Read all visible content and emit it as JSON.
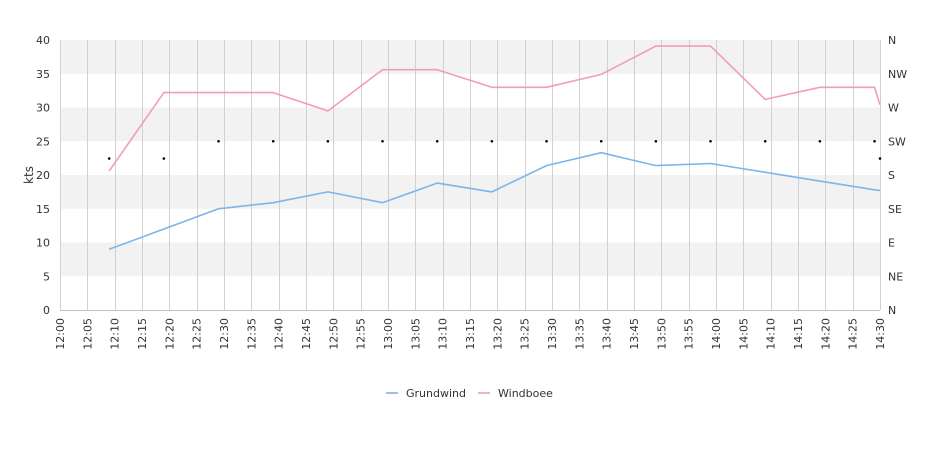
{
  "chart_data": {
    "type": "line",
    "ylabel": "kts",
    "ylim": [
      0,
      40
    ],
    "y_ticks": [
      "0",
      "5",
      "10",
      "15",
      "20",
      "25",
      "30",
      "35",
      "40"
    ],
    "right_ticks": [
      "N",
      "NE",
      "E",
      "SE",
      "S",
      "SW",
      "W",
      "NW",
      "N"
    ],
    "x_ticks": [
      "12:00",
      "12:05",
      "12:10",
      "12:15",
      "12:20",
      "12:25",
      "12:30",
      "12:35",
      "12:40",
      "12:45",
      "12:50",
      "12:55",
      "13:00",
      "13:05",
      "13:10",
      "13:15",
      "13:20",
      "13:25",
      "13:30",
      "13:35",
      "13:40",
      "13:45",
      "13:50",
      "13:55",
      "14:00",
      "14:05",
      "14:10",
      "14:15",
      "14:20",
      "14:25",
      "14:30"
    ],
    "grid": true,
    "legend_position": "bottom-center",
    "series": [
      {
        "name": "Grundwind",
        "color": "#7cb5ec",
        "x": [
          "12:09",
          "12:19",
          "12:29",
          "12:39",
          "12:49",
          "12:59",
          "13:09",
          "13:19",
          "13:29",
          "13:39",
          "13:49",
          "13:59",
          "14:09",
          "14:19",
          "14:29",
          "14:30"
        ],
        "values": [
          9.0,
          12.0,
          15.0,
          15.9,
          17.5,
          15.9,
          18.8,
          17.5,
          21.4,
          23.3,
          21.4,
          21.7,
          20.4,
          19.1,
          17.8,
          17.7
        ]
      },
      {
        "name": "Windboee",
        "color": "#f49ac1",
        "x": [
          "12:09",
          "12:19",
          "12:29",
          "12:39",
          "12:49",
          "12:59",
          "13:09",
          "13:19",
          "13:29",
          "13:39",
          "13:49",
          "13:59",
          "14:09",
          "14:19",
          "14:29",
          "14:30"
        ],
        "values": [
          20.6,
          32.2,
          32.2,
          32.2,
          29.5,
          35.6,
          35.6,
          33.0,
          33.0,
          34.9,
          39.1,
          39.1,
          31.2,
          33.0,
          33.0,
          30.4
        ]
      }
    ],
    "direction_series": {
      "x": [
        "12:09",
        "12:19",
        "12:29",
        "12:39",
        "12:49",
        "12:59",
        "13:09",
        "13:19",
        "13:29",
        "13:39",
        "13:49",
        "13:59",
        "14:09",
        "14:19",
        "14:29",
        "14:30"
      ],
      "values_deg": [
        202,
        202,
        225,
        225,
        225,
        225,
        225,
        225,
        225,
        225,
        225,
        225,
        225,
        225,
        225,
        202
      ]
    }
  }
}
